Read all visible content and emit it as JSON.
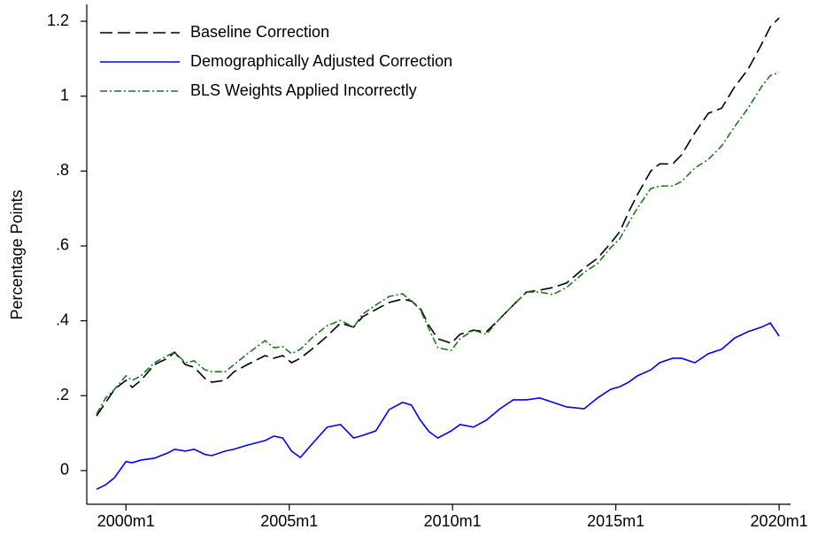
{
  "chart_data": {
    "type": "line",
    "y_label": "Percentage Points",
    "x": [
      1999.1,
      1999.38,
      1999.65,
      2000.0,
      2000.19,
      2000.46,
      2000.87,
      2001.28,
      2001.49,
      2001.82,
      2002.09,
      2002.42,
      2002.63,
      2003.04,
      2003.31,
      2003.72,
      2004.26,
      2004.53,
      2004.8,
      2005.07,
      2005.34,
      2005.75,
      2006.16,
      2006.57,
      2006.97,
      2007.25,
      2007.65,
      2008.06,
      2008.47,
      2008.74,
      2009.01,
      2009.28,
      2009.55,
      2009.96,
      2010.23,
      2010.64,
      2011.04,
      2011.45,
      2011.86,
      2012.27,
      2012.67,
      2013.08,
      2013.49,
      2014.03,
      2014.44,
      2014.84,
      2015.12,
      2015.39,
      2015.66,
      2016.07,
      2016.34,
      2016.74,
      2017.01,
      2017.42,
      2017.83,
      2018.24,
      2018.64,
      2019.05,
      2019.46,
      2019.73,
      2020.0
    ],
    "series": [
      {
        "name": "Baseline Correction",
        "color": "#000000",
        "dash": "14,6",
        "values": [
          0.146,
          0.182,
          0.217,
          0.241,
          0.222,
          0.241,
          0.283,
          0.3,
          0.316,
          0.283,
          0.276,
          0.246,
          0.236,
          0.241,
          0.264,
          0.283,
          0.307,
          0.3,
          0.307,
          0.288,
          0.3,
          0.328,
          0.359,
          0.394,
          0.383,
          0.411,
          0.43,
          0.449,
          0.458,
          0.453,
          0.434,
          0.387,
          0.352,
          0.34,
          0.364,
          0.375,
          0.371,
          0.406,
          0.442,
          0.477,
          0.482,
          0.489,
          0.501,
          0.541,
          0.567,
          0.607,
          0.638,
          0.69,
          0.737,
          0.8,
          0.819,
          0.819,
          0.843,
          0.902,
          0.954,
          0.968,
          1.025,
          1.072,
          1.138,
          1.185,
          1.209
        ]
      },
      {
        "name": "Demographically Adjusted Correction",
        "color": "#0000ff",
        "dash": "none",
        "values": [
          -0.05,
          -0.038,
          -0.019,
          0.024,
          0.021,
          0.028,
          0.033,
          0.047,
          0.057,
          0.052,
          0.057,
          0.043,
          0.04,
          0.052,
          0.057,
          0.068,
          0.08,
          0.092,
          0.087,
          0.052,
          0.035,
          0.076,
          0.116,
          0.123,
          0.087,
          0.094,
          0.106,
          0.163,
          0.182,
          0.175,
          0.135,
          0.104,
          0.087,
          0.106,
          0.123,
          0.116,
          0.135,
          0.165,
          0.189,
          0.189,
          0.194,
          0.182,
          0.17,
          0.165,
          0.194,
          0.217,
          0.224,
          0.236,
          0.253,
          0.269,
          0.288,
          0.3,
          0.3,
          0.288,
          0.312,
          0.324,
          0.354,
          0.371,
          0.383,
          0.394,
          0.359
        ]
      },
      {
        "name": "BLS Weights Applied Incorrectly",
        "color": "#1a7a1a",
        "dash": "8,3,2,3",
        "values": [
          0.151,
          0.194,
          0.217,
          0.253,
          0.241,
          0.253,
          0.288,
          0.307,
          0.316,
          0.288,
          0.293,
          0.269,
          0.264,
          0.264,
          0.283,
          0.312,
          0.347,
          0.328,
          0.331,
          0.312,
          0.324,
          0.359,
          0.387,
          0.401,
          0.383,
          0.418,
          0.442,
          0.465,
          0.472,
          0.453,
          0.43,
          0.378,
          0.328,
          0.321,
          0.352,
          0.375,
          0.364,
          0.406,
          0.442,
          0.477,
          0.477,
          0.47,
          0.489,
          0.529,
          0.553,
          0.595,
          0.619,
          0.661,
          0.701,
          0.753,
          0.76,
          0.76,
          0.772,
          0.808,
          0.831,
          0.867,
          0.919,
          0.968,
          1.025,
          1.055,
          1.063
        ]
      }
    ],
    "xlim": [
      1998.8,
      2020.35
    ],
    "xticks": [
      {
        "value": 2000,
        "label": "2000m1"
      },
      {
        "value": 2005,
        "label": "2005m1"
      },
      {
        "value": 2010,
        "label": "2010m1"
      },
      {
        "value": 2015,
        "label": "2015m1"
      },
      {
        "value": 2020,
        "label": "2020m1"
      }
    ],
    "ylim": [
      -0.09,
      1.245
    ],
    "yticks": [
      0,
      {
        "value": 0.2,
        "label": ".2"
      },
      {
        "value": 0.4,
        "label": ".4"
      },
      {
        "value": 0.6,
        "label": ".6"
      },
      {
        "value": 0.8,
        "label": ".8"
      },
      1,
      1.2
    ],
    "legend": "top-left"
  }
}
